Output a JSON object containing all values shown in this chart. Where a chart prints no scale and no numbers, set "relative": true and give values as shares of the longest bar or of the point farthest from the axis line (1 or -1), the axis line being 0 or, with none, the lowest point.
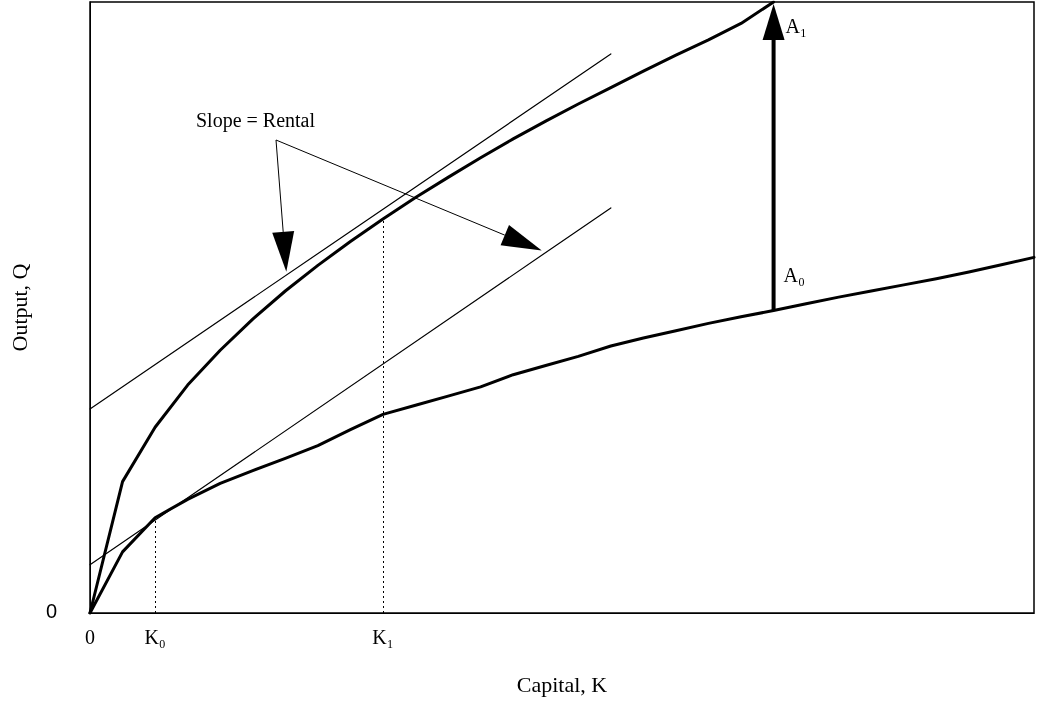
{
  "chart_data": {
    "type": "line",
    "relative": true,
    "xlabel": "Capital, K",
    "ylabel": "Output, Q",
    "marker": "none",
    "categories": [
      "0",
      null,
      "K₀",
      null,
      null,
      null,
      null,
      null,
      null,
      "K₁",
      null,
      null,
      null,
      null,
      null,
      null,
      null,
      null,
      null,
      null,
      null,
      null,
      null,
      null,
      null,
      null,
      null,
      null,
      null,
      null
    ],
    "annotations": [
      "Slope = Rental",
      "0",
      "A₀",
      "A₁"
    ],
    "ref_lines": [
      {
        "axis": "x",
        "value": "K₀",
        "line_style": "dotted"
      },
      {
        "axis": "x",
        "value": "K₁",
        "line_style": "dotted"
      }
    ],
    "series": [
      {
        "color": "#000000",
        "values": [
          0,
          0.1,
          0.156,
          0.186,
          0.212,
          0.233,
          0.253,
          0.274,
          0.3,
          0.325,
          0.34,
          0.355,
          0.37,
          0.39,
          0.405,
          0.42,
          0.437,
          0.45,
          0.462,
          0.474,
          0.485,
          0.495,
          0.506,
          0.517,
          0.527,
          0.537,
          0.547,
          0.558,
          0.57,
          0.582
        ]
      },
      {
        "color": "#000000",
        "values": [
          0,
          0.215,
          0.304,
          0.373,
          0.43,
          0.481,
          0.527,
          0.569,
          0.608,
          0.645,
          0.68,
          0.713,
          0.745,
          0.776,
          0.805,
          0.833,
          0.86,
          0.887,
          0.913,
          0.938,
          0.965,
          1,
          null,
          null,
          null,
          null,
          null,
          null,
          null,
          null
        ]
      },
      {
        "color": "#000000",
        "values": [
          0.334,
          null,
          null,
          null,
          null,
          null,
          null,
          null,
          null,
          null,
          null,
          null,
          null,
          null,
          null,
          null,
          0.915,
          null,
          null,
          null,
          null,
          null,
          null,
          null,
          null,
          null,
          null,
          null,
          null,
          null
        ]
      },
      {
        "color": "#000000",
        "values": [
          0.079,
          null,
          null,
          null,
          null,
          null,
          null,
          null,
          null,
          null,
          null,
          null,
          null,
          null,
          null,
          null,
          0.663,
          null,
          null,
          null,
          null,
          null,
          null,
          null,
          null,
          null,
          null,
          null,
          null,
          null
        ]
      }
    ]
  }
}
